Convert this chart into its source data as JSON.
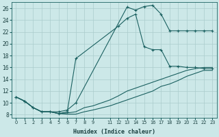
{
  "xlabel": "Humidex (Indice chaleur)",
  "bg_color": "#cce8e8",
  "grid_color": "#aacccc",
  "line_color": "#1a6060",
  "xlim": [
    -0.5,
    23.5
  ],
  "ylim": [
    7.5,
    27
  ],
  "yticks": [
    8,
    10,
    12,
    14,
    16,
    18,
    20,
    22,
    24,
    26
  ],
  "xticks": [
    0,
    1,
    2,
    3,
    4,
    5,
    6,
    7,
    8,
    9,
    11,
    12,
    13,
    14,
    15,
    16,
    17,
    18,
    19,
    20,
    21,
    22,
    23
  ],
  "series": [
    {
      "x": [
        0,
        1,
        2,
        3,
        4,
        5,
        6,
        7,
        13,
        14,
        15,
        16,
        17,
        18,
        19,
        20,
        21,
        22,
        23
      ],
      "y": [
        11,
        10.3,
        9.2,
        8.5,
        8.5,
        8.5,
        8.8,
        10.0,
        26.2,
        25.7,
        26.3,
        26.5,
        25.0,
        22.2,
        22.2,
        22.2,
        22.2,
        22.2,
        22.2
      ],
      "has_marker": true
    },
    {
      "x": [
        0,
        1,
        2,
        3,
        4,
        5,
        6,
        7,
        12,
        13,
        14,
        15,
        16,
        17,
        18,
        19,
        20,
        21,
        22,
        23
      ],
      "y": [
        11,
        10.3,
        9.2,
        8.5,
        8.5,
        8.2,
        8.5,
        17.5,
        23.0,
        24.3,
        25.0,
        19.5,
        19.0,
        19.0,
        16.2,
        16.2,
        16.0,
        16.0,
        15.8,
        15.8
      ],
      "has_marker": true
    },
    {
      "x": [
        0,
        1,
        2,
        3,
        4,
        5,
        6,
        7,
        8,
        9,
        11,
        12,
        13,
        14,
        15,
        16,
        17,
        18,
        19,
        20,
        21,
        22,
        23
      ],
      "y": [
        11,
        10.3,
        9.2,
        8.5,
        8.5,
        8.2,
        8.3,
        8.5,
        9.2,
        9.5,
        10.5,
        11.2,
        12.0,
        12.5,
        13.0,
        13.5,
        14.0,
        14.5,
        15.0,
        15.5,
        15.8,
        16.0,
        16.0
      ],
      "has_marker": false
    },
    {
      "x": [
        0,
        1,
        2,
        3,
        4,
        5,
        6,
        7,
        8,
        9,
        11,
        12,
        13,
        14,
        15,
        16,
        17,
        18,
        19,
        20,
        21,
        22,
        23
      ],
      "y": [
        11,
        10.3,
        9.2,
        8.5,
        8.5,
        8.2,
        8.1,
        8.1,
        8.5,
        8.8,
        9.5,
        10.0,
        10.5,
        11.0,
        11.5,
        12.0,
        12.8,
        13.2,
        13.8,
        14.5,
        15.0,
        15.5,
        15.5
      ],
      "has_marker": false
    }
  ]
}
